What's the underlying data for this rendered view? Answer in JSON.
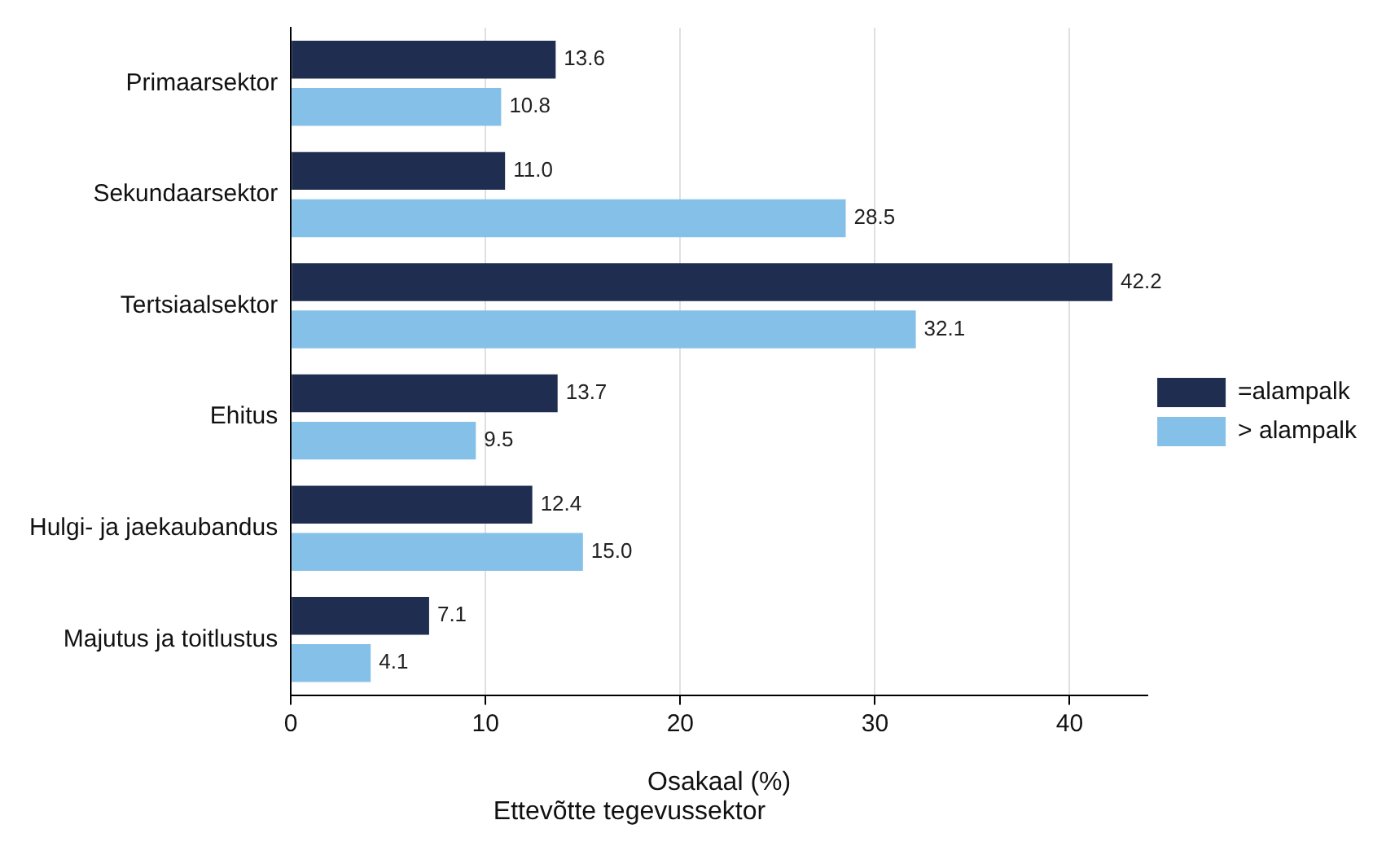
{
  "chart_data": {
    "type": "bar",
    "orientation": "horizontal",
    "xlabel": "Osakaal (%)",
    "annotations": [
      "Ettevõtte tegevussektor"
    ],
    "categories": [
      "Primaarsektor",
      "Sekundaarsektor",
      "Tertsiaalsektor",
      "Ehitus",
      "Hulgi- ja jaekaubandus",
      "Majutus ja toitlustus"
    ],
    "series": [
      {
        "name": "=alampalk",
        "color": "#1f2d50",
        "values": [
          13.6,
          11.0,
          42.2,
          13.7,
          12.4,
          7.1
        ],
        "value_labels": [
          "13.6",
          "11.0",
          "42.2",
          "13.7",
          "12.4",
          "7.1"
        ]
      },
      {
        "name": "> alampalk",
        "color": "#85c0e9",
        "values": [
          10.8,
          28.5,
          32.1,
          9.5,
          15.0,
          4.1
        ],
        "value_labels": [
          "10.8",
          "28.5",
          "32.1",
          "9.5",
          "15.0",
          "4.1"
        ]
      }
    ],
    "xlim": [
      0,
      44
    ],
    "xticks": [
      0,
      10,
      20,
      30,
      40
    ],
    "grid": "x",
    "legend": "right"
  }
}
